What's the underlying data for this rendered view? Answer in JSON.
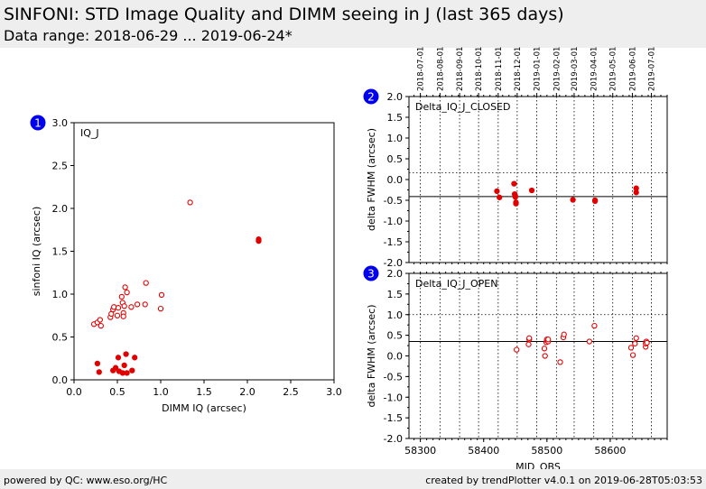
{
  "header": {
    "title": "SINFONI: STD Image Quality and DIMM seeing in J (last 365 days)",
    "subtitle": "Data range: 2018-06-29 ... 2019-06-24*"
  },
  "footer": {
    "left": "powered by QC: www.eso.org/HC",
    "right": "created by trendPlotter v4.0.1 on 2019-06-28T05:03:53"
  },
  "colors": {
    "marker": "#e00000",
    "badge": "#0000ee",
    "ref_line": "#000000"
  },
  "chart_data": [
    {
      "panel": "1",
      "type": "scatter",
      "label": "IQ_J",
      "xlabel": "DIMM IQ (arcsec)",
      "ylabel": "sinfoni IQ (arcsec)",
      "xlim": [
        0,
        3
      ],
      "ylim": [
        0,
        3
      ],
      "xticks": [
        "0.0",
        "0.5",
        "1.0",
        "1.5",
        "2.0",
        "2.5",
        "3.0"
      ],
      "yticks": [
        "0.0",
        "0.5",
        "1.0",
        "1.5",
        "2.0",
        "2.5",
        "3.0"
      ],
      "series": [
        {
          "style": "open",
          "points": [
            [
              0.23,
              0.65
            ],
            [
              0.27,
              0.67
            ],
            [
              0.3,
              0.7
            ],
            [
              0.31,
              0.63
            ],
            [
              0.42,
              0.73
            ],
            [
              0.43,
              0.77
            ],
            [
              0.45,
              0.82
            ],
            [
              0.46,
              0.85
            ],
            [
              0.5,
              0.75
            ],
            [
              0.51,
              0.84
            ],
            [
              0.55,
              0.97
            ],
            [
              0.56,
              0.9
            ],
            [
              0.57,
              0.78
            ],
            [
              0.57,
              0.74
            ],
            [
              0.58,
              0.86
            ],
            [
              0.59,
              1.08
            ],
            [
              0.61,
              1.02
            ],
            [
              0.66,
              0.85
            ],
            [
              0.73,
              0.88
            ],
            [
              0.82,
              0.88
            ],
            [
              0.83,
              1.13
            ],
            [
              1.0,
              0.83
            ],
            [
              1.01,
              0.99
            ],
            [
              1.34,
              2.07
            ]
          ]
        },
        {
          "style": "filled",
          "points": [
            [
              0.27,
              0.19
            ],
            [
              0.29,
              0.09
            ],
            [
              0.45,
              0.11
            ],
            [
              0.48,
              0.14
            ],
            [
              0.51,
              0.26
            ],
            [
              0.52,
              0.1
            ],
            [
              0.56,
              0.08
            ],
            [
              0.58,
              0.17
            ],
            [
              0.6,
              0.3
            ],
            [
              0.61,
              0.08
            ],
            [
              0.67,
              0.11
            ],
            [
              0.7,
              0.26
            ],
            [
              2.13,
              1.64
            ],
            [
              2.13,
              1.62
            ]
          ]
        }
      ]
    },
    {
      "panel": "2",
      "type": "scatter",
      "label": "Delta_IQ_J_CLOSED",
      "xlabel": "",
      "ylabel": "delta FWHM (arcsec)",
      "xlim": [
        58282,
        58690
      ],
      "ylim": [
        -2,
        2
      ],
      "yticks": [
        "-2.0",
        "-1.5",
        "-1.0",
        "-0.5",
        "0.0",
        "0.5",
        "1.0",
        "1.5",
        "2.0"
      ],
      "ref_line": -0.41,
      "dotted_line": 0.16,
      "date_ticks": [
        "2018-07-01",
        "2018-08-01",
        "2018-09-01",
        "2018-10-01",
        "2018-11-01",
        "2018-12-01",
        "2019-01-01",
        "2019-02-01",
        "2019-03-01",
        "2019-04-01",
        "2019-05-01",
        "2019-06-01",
        "2019-07-01"
      ],
      "date_tick_mjd": [
        58300,
        58331,
        58362,
        58392,
        58423,
        58453,
        58484,
        58515,
        58543,
        58574,
        58604,
        58635,
        58665
      ],
      "series": [
        {
          "style": "filled",
          "points": [
            [
              58421,
              -0.28
            ],
            [
              58425,
              -0.43
            ],
            [
              58448,
              -0.1
            ],
            [
              58449,
              -0.35
            ],
            [
              58450,
              -0.4
            ],
            [
              58450,
              -0.42
            ],
            [
              58451,
              -0.55
            ],
            [
              58451,
              -0.58
            ],
            [
              58476,
              -0.26
            ],
            [
              58541,
              -0.49
            ],
            [
              58576,
              -0.5
            ],
            [
              58576,
              -0.52
            ],
            [
              58641,
              -0.21
            ],
            [
              58641,
              -0.31
            ]
          ]
        }
      ]
    },
    {
      "panel": "3",
      "type": "scatter",
      "label": "Delta_IQ_J_OPEN",
      "xlabel": "MJD_OBS",
      "ylabel": "delta FWHM (arcsec)",
      "xlim": [
        58282,
        58690
      ],
      "ylim": [
        -2,
        2
      ],
      "xticks": [
        "58300",
        "58400",
        "58500",
        "58600"
      ],
      "yticks": [
        "-2.0",
        "-1.5",
        "-1.0",
        "-0.5",
        "0.0",
        "0.5",
        "1.0",
        "1.5",
        "2.0"
      ],
      "ref_line": 0.35,
      "dotted_line": 1.0,
      "series": [
        {
          "style": "open",
          "points": [
            [
              58452,
              0.15
            ],
            [
              58471,
              0.28
            ],
            [
              58472,
              0.4
            ],
            [
              58472,
              0.43
            ],
            [
              58496,
              0.18
            ],
            [
              58497,
              0.0
            ],
            [
              58499,
              0.33
            ],
            [
              58500,
              0.38
            ],
            [
              58500,
              0.4
            ],
            [
              58502,
              0.35
            ],
            [
              58502,
              0.4
            ],
            [
              58521,
              -0.15
            ],
            [
              58526,
              0.45
            ],
            [
              58527,
              0.52
            ],
            [
              58567,
              0.35
            ],
            [
              58575,
              0.73
            ],
            [
              58633,
              0.2
            ],
            [
              58636,
              0.02
            ],
            [
              58639,
              0.3
            ],
            [
              58641,
              0.43
            ],
            [
              58656,
              0.22
            ],
            [
              58656,
              0.3
            ],
            [
              58657,
              0.35
            ],
            [
              58658,
              0.32
            ]
          ]
        }
      ]
    }
  ]
}
